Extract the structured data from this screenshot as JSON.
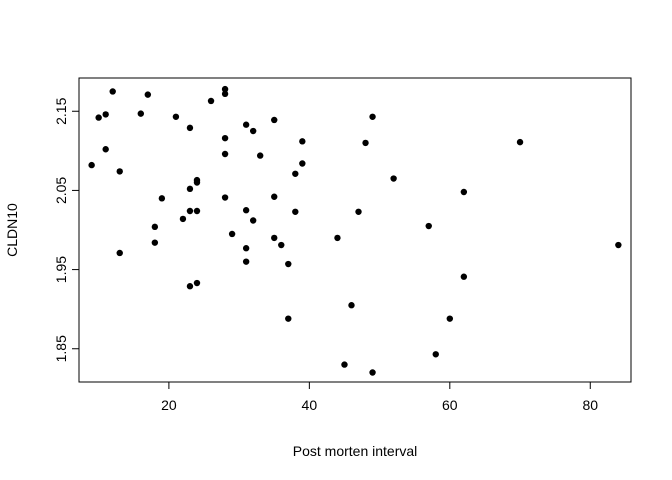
{
  "chart_data": {
    "type": "scatter",
    "title": "",
    "xlabel": "Post morten interval",
    "ylabel": "CLDN10",
    "xlim": [
      7.2,
      85.8
    ],
    "ylim": [
      1.808,
      2.192
    ],
    "xticks": [
      20,
      40,
      60,
      80
    ],
    "yticks": [
      1.85,
      1.95,
      2.05,
      2.15
    ],
    "grid": false,
    "legend": false,
    "point_color": "#000000",
    "points": [
      {
        "x": 9,
        "y": 2.082
      },
      {
        "x": 10,
        "y": 2.142
      },
      {
        "x": 11,
        "y": 2.146
      },
      {
        "x": 11,
        "y": 2.102
      },
      {
        "x": 12,
        "y": 2.175
      },
      {
        "x": 13,
        "y": 2.074
      },
      {
        "x": 13,
        "y": 1.971
      },
      {
        "x": 16,
        "y": 2.147
      },
      {
        "x": 17,
        "y": 2.171
      },
      {
        "x": 18,
        "y": 2.004
      },
      {
        "x": 18,
        "y": 1.984
      },
      {
        "x": 19,
        "y": 2.04
      },
      {
        "x": 21,
        "y": 2.143
      },
      {
        "x": 22,
        "y": 2.014
      },
      {
        "x": 23,
        "y": 2.129
      },
      {
        "x": 23,
        "y": 2.052
      },
      {
        "x": 23,
        "y": 2.024
      },
      {
        "x": 23,
        "y": 1.929
      },
      {
        "x": 24,
        "y": 2.063
      },
      {
        "x": 24,
        "y": 2.06
      },
      {
        "x": 24,
        "y": 2.024
      },
      {
        "x": 24,
        "y": 1.933
      },
      {
        "x": 26,
        "y": 2.163
      },
      {
        "x": 28,
        "y": 2.178
      },
      {
        "x": 28,
        "y": 2.172
      },
      {
        "x": 28,
        "y": 2.116
      },
      {
        "x": 28,
        "y": 2.096
      },
      {
        "x": 28,
        "y": 2.041
      },
      {
        "x": 29,
        "y": 1.995
      },
      {
        "x": 31,
        "y": 2.133
      },
      {
        "x": 31,
        "y": 2.025
      },
      {
        "x": 31,
        "y": 1.977
      },
      {
        "x": 31,
        "y": 1.96
      },
      {
        "x": 32,
        "y": 2.125
      },
      {
        "x": 32,
        "y": 2.012
      },
      {
        "x": 33,
        "y": 2.094
      },
      {
        "x": 35,
        "y": 2.139
      },
      {
        "x": 35,
        "y": 2.042
      },
      {
        "x": 35,
        "y": 1.99
      },
      {
        "x": 36,
        "y": 1.981
      },
      {
        "x": 37,
        "y": 1.957
      },
      {
        "x": 37,
        "y": 1.888
      },
      {
        "x": 38,
        "y": 2.071
      },
      {
        "x": 38,
        "y": 2.023
      },
      {
        "x": 39,
        "y": 2.112
      },
      {
        "x": 39,
        "y": 2.084
      },
      {
        "x": 44,
        "y": 1.99
      },
      {
        "x": 45,
        "y": 1.83
      },
      {
        "x": 46,
        "y": 1.905
      },
      {
        "x": 47,
        "y": 2.023
      },
      {
        "x": 48,
        "y": 2.11
      },
      {
        "x": 49,
        "y": 2.143
      },
      {
        "x": 49,
        "y": 1.82
      },
      {
        "x": 52,
        "y": 2.065
      },
      {
        "x": 57,
        "y": 2.005
      },
      {
        "x": 58,
        "y": 1.843
      },
      {
        "x": 60,
        "y": 1.888
      },
      {
        "x": 62,
        "y": 2.048
      },
      {
        "x": 62,
        "y": 1.941
      },
      {
        "x": 70,
        "y": 2.111
      },
      {
        "x": 84,
        "y": 1.981
      }
    ]
  }
}
